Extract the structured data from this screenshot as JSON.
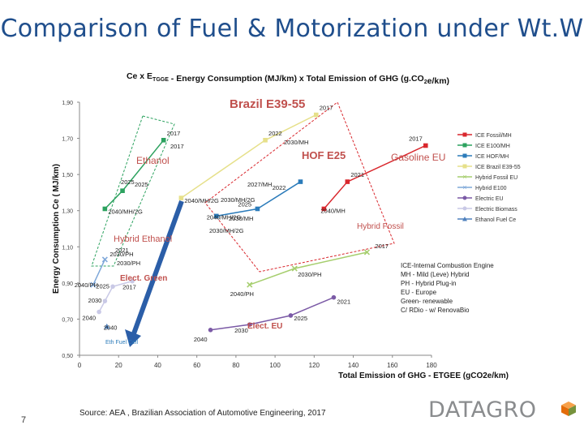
{
  "page": {
    "title": "Comparison of Fuel & Motorization under Wt.W",
    "source": "Source: AEA , Brazilian Association of Automotive Engineering, 2017",
    "page_number": "7",
    "logo": "DATAGRO",
    "logo_colors": {
      "text": "#8a8c8e",
      "cube_left": "#e36c0a",
      "cube_right": "#76923c",
      "cube_top": "#f7a14a"
    }
  },
  "chart_data": {
    "type": "scatter",
    "title": "Ce x ETGGE - Energy Consumption (MJ/km) x Total Emission of GHG (gCO2e/km)",
    "xlabel": "Total Emission of GHG - ETGEE (gCO2e/km)",
    "ylabel": "Energy Consumption Ce ( MJ/km)",
    "xlim": [
      0,
      180
    ],
    "ylim": [
      0.5,
      1.9
    ],
    "x_ticks": [
      "0",
      "20",
      "40",
      "60",
      "80",
      "100",
      "120",
      "140",
      "160",
      "180"
    ],
    "y_ticks": [
      "0,50",
      "0,70",
      "0,90",
      "1,10",
      "1,30",
      "1,50",
      "1,70",
      "1,90"
    ],
    "series": [
      {
        "name": "ICE Fossil/MH",
        "color": "#d9272d",
        "marker": "square",
        "points": [
          [
            125,
            1.31
          ],
          [
            137,
            1.46
          ],
          [
            177,
            1.66
          ]
        ],
        "labels": [
          "2040/MH",
          "2021",
          "2017"
        ]
      },
      {
        "name": "ICE E100/MH",
        "color": "#2ca25f",
        "marker": "square",
        "points": [
          [
            13,
            1.31
          ],
          [
            22,
            1.41
          ],
          [
            43,
            1.69
          ]
        ],
        "labels": [
          "2040/MH/2G",
          "2025",
          "2017"
        ]
      },
      {
        "name": "ICE HOF/MH",
        "color": "#2b7bba",
        "marker": "square",
        "points": [
          [
            70,
            1.27
          ],
          [
            91,
            1.31
          ],
          [
            113,
            1.46
          ]
        ],
        "labels": [
          "2040/MH/2G",
          "2025",
          "2022"
        ]
      },
      {
        "name": "ICE Brazil E39-55",
        "color": "#e6e08a",
        "marker": "square",
        "points": [
          [
            52,
            1.37
          ],
          [
            95,
            1.69
          ],
          [
            121,
            1.83
          ]
        ],
        "labels": [
          "2040/MH/2G",
          "2022",
          "2017"
        ]
      },
      {
        "name": "Hybrid Fossil EU",
        "color": "#a6ce6e",
        "marker": "x",
        "points": [
          [
            87,
            0.89
          ],
          [
            110,
            0.98
          ],
          [
            147,
            1.07
          ]
        ],
        "labels": [
          "2040/PH",
          "2030/PH",
          "2017"
        ]
      },
      {
        "name": "Hybrid E100",
        "color": "#7fa8d9",
        "marker": "x",
        "points": [
          [
            7,
            0.89
          ],
          [
            13,
            1.03
          ]
        ],
        "labels": [
          "2040/PH",
          "2030/PH"
        ]
      },
      {
        "name": "Electric EU",
        "color": "#7b5aa6",
        "marker": "circle",
        "points": [
          [
            67,
            0.64
          ],
          [
            87,
            0.67
          ],
          [
            108,
            0.72
          ],
          [
            130,
            0.82
          ]
        ],
        "labels": [
          "2040",
          "2030",
          "2025",
          "2021"
        ]
      },
      {
        "name": "Electric Biomass",
        "color": "#c9c9e6",
        "marker": "circle",
        "points": [
          [
            10,
            0.74
          ],
          [
            13,
            0.8
          ],
          [
            17,
            0.88
          ],
          [
            27,
            0.91
          ]
        ],
        "labels": [
          "2040",
          "2030",
          "2025",
          "2017"
        ]
      },
      {
        "name": "Ethanol Fuel Ce",
        "color": "#4f81bd",
        "marker": "triangle",
        "points": [
          [
            14,
            0.66
          ]
        ],
        "labels": [
          "2040"
        ]
      }
    ],
    "legend": {
      "position": "right",
      "entries": [
        "ICE Fossil/MH",
        "ICE E100/MH",
        "ICE HOF/MH",
        "ICE Brazil E39-55",
        "Hybrid Fossil EU",
        "Hybrid E100",
        "Electric EU",
        "Electric Biomass",
        "Ethanol Fuel Ce"
      ]
    },
    "glossary": [
      "ICE-Internal Combustion Engine",
      "MH - Mild (Leve) Hybrid",
      "PH - Hybrid Plug-in",
      "EU - Europe",
      "Green- renewable",
      "C/ RDio - w/ RenovaBio"
    ],
    "annotations": [
      {
        "text": "Brazil E39-55",
        "color": "#c0504d"
      },
      {
        "text": "Ethanol",
        "color": "#c0504d"
      },
      {
        "text": "HOF E25",
        "color": "#c0504d"
      },
      {
        "text": "Gasoline EU",
        "color": "#c0504d"
      },
      {
        "text": "Hybrid Fossil",
        "color": "#c0504d"
      },
      {
        "text": "Hybrid Ethanol",
        "color": "#c0504d"
      },
      {
        "text": "Elect. Green",
        "color": "#c0504d"
      },
      {
        "text": "Elect. EU",
        "color": "#c0504d"
      },
      {
        "text": "Eth Fuel Cell",
        "color": "#2b7bba"
      },
      {
        "text": "2027/MH",
        "color": "#222222"
      },
      {
        "text": "2030/MH",
        "color": "#222222"
      },
      {
        "text": "2030/MH",
        "color": "#222222"
      },
      {
        "text": "2030/MH/2G",
        "color": "#222222"
      },
      {
        "text": "2030/MH/2G",
        "color": "#222222"
      },
      {
        "text": "2017",
        "color": "#222222"
      },
      {
        "text": "2021",
        "color": "#222222"
      },
      {
        "text": "2025",
        "color": "#222222"
      },
      {
        "text": "2030/PH",
        "color": "#222222"
      }
    ]
  }
}
